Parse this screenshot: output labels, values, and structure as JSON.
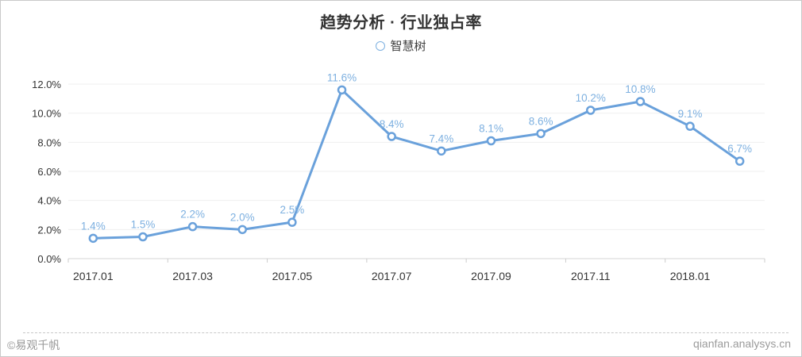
{
  "chart": {
    "title": "趋势分析 · 行业独占率"
  },
  "legend": {
    "label": "智慧树"
  },
  "footer": {
    "copyright": "©易观千帆",
    "site": "qianfan.analysys.cn"
  },
  "chart_data": {
    "type": "line",
    "title": "趋势分析 · 行业独占率",
    "series": [
      {
        "name": "智慧树",
        "values": [
          1.4,
          1.5,
          2.2,
          2.0,
          2.5,
          11.6,
          8.4,
          7.4,
          8.1,
          8.6,
          10.2,
          10.8,
          9.1,
          6.7
        ],
        "value_labels": [
          "1.4%",
          "1.5%",
          "2.2%",
          "2.0%",
          "2.5%",
          "11.6%",
          "8.4%",
          "7.4%",
          "8.1%",
          "8.6%",
          "10.2%",
          "10.8%",
          "9.1%",
          "6.7%"
        ]
      }
    ],
    "x_tick_labels": [
      "2017.01",
      "2017.03",
      "2017.05",
      "2017.07",
      "2017.09",
      "2017.11",
      "2018.01"
    ],
    "x_tick_positions": [
      0,
      2,
      4,
      6,
      8,
      10,
      12
    ],
    "y_tick_labels": [
      "0.0%",
      "2.0%",
      "4.0%",
      "6.0%",
      "8.0%",
      "10.0%",
      "12.0%"
    ],
    "ylim": [
      0,
      12
    ],
    "grid": true,
    "legend_position": "top",
    "colors": {
      "line": "#6aa1db",
      "marker_stroke": "#6aa1db",
      "marker_fill": "#ffffff",
      "point_label": "#7db0e0",
      "axis_text": "#333333",
      "gridline": "#efefef",
      "axis_line": "#d6d6d6",
      "tick": "#cccccc"
    }
  }
}
